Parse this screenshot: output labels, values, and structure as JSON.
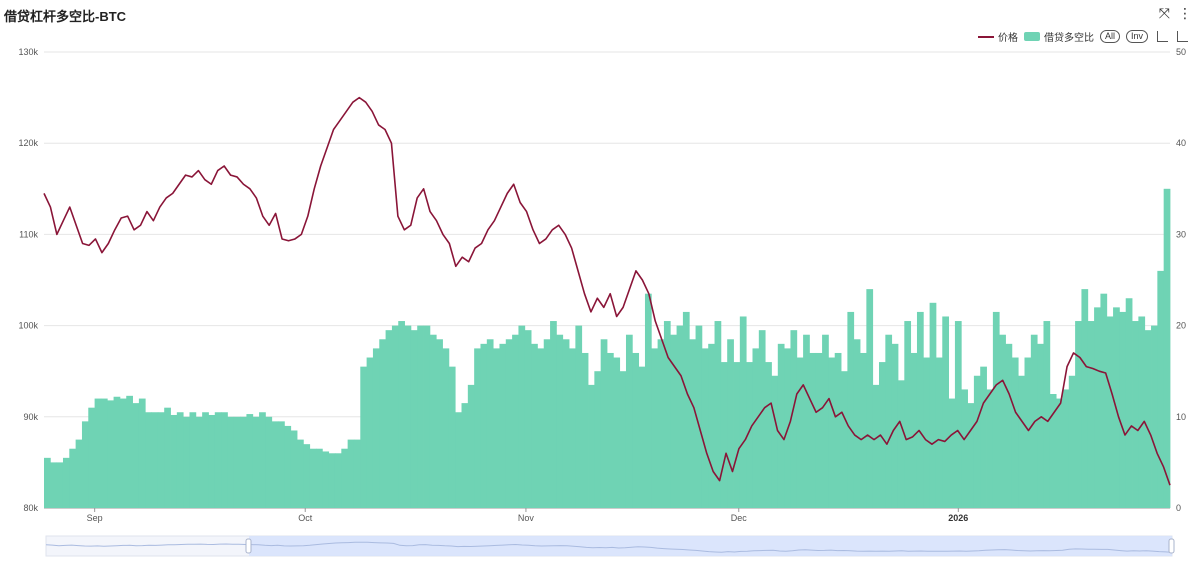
{
  "title": "借贷杠杆多空比-BTC",
  "icons": {
    "expand": "expand-icon",
    "more": "more-vertical-icon"
  },
  "legend": {
    "price": "价格",
    "ratio": "借贷多空比",
    "all": "All",
    "inv": "Inv"
  },
  "colors": {
    "price": "#8a1538",
    "ratio": "#6fd3b4",
    "zoom_fill": "#d6e2fb"
  },
  "chart_data": {
    "type": "bar+line",
    "x_ticks": [
      "Sep",
      "Oct",
      "Nov",
      "Dec",
      "2026"
    ],
    "x_tick_bold": "2026",
    "y_left": {
      "min": 80000,
      "max": 130000,
      "ticks": [
        "80k",
        "90k",
        "100k",
        "110k",
        "120k",
        "130k"
      ]
    },
    "y_right": {
      "min": 0,
      "max": 50,
      "ticks": [
        "0",
        "10",
        "20",
        "30",
        "40",
        "50"
      ]
    },
    "series": [
      {
        "name": "价格",
        "type": "line",
        "axis": "left",
        "values": [
          114500,
          113000,
          110000,
          111500,
          113000,
          111000,
          109000,
          108800,
          109500,
          108000,
          109000,
          110500,
          111800,
          112000,
          110500,
          111000,
          112500,
          111500,
          113000,
          114000,
          114500,
          115500,
          116500,
          116300,
          117000,
          116000,
          115500,
          117000,
          117500,
          116500,
          116300,
          115500,
          115000,
          114000,
          112000,
          111000,
          112300,
          109500,
          109300,
          109500,
          110000,
          112000,
          115000,
          117500,
          119500,
          121500,
          122500,
          123500,
          124500,
          125000,
          124500,
          123500,
          122000,
          121500,
          120000,
          112000,
          110500,
          111000,
          114000,
          115000,
          112500,
          111500,
          110000,
          109000,
          106500,
          107500,
          107000,
          108500,
          109000,
          110500,
          111500,
          113000,
          114500,
          115500,
          113500,
          112500,
          110500,
          109000,
          109500,
          110500,
          111000,
          110000,
          108500,
          106000,
          103500,
          101500,
          103000,
          102000,
          103500,
          101000,
          102000,
          104000,
          106000,
          105000,
          103500,
          100500,
          98500,
          96500,
          95500,
          94500,
          92500,
          91000,
          88500,
          86000,
          84000,
          83000,
          86000,
          84000,
          86500,
          87500,
          89000,
          90000,
          91000,
          91500,
          88500,
          87500,
          89500,
          92500,
          93500,
          92000,
          90500,
          91000,
          92000,
          90000,
          90500,
          89000,
          88000,
          87500,
          88000,
          87500,
          88000,
          87000,
          88500,
          89500,
          87500,
          87800,
          88500,
          87500,
          87000,
          87500,
          87300,
          88000,
          88500,
          87500,
          88500,
          89500,
          91500,
          92500,
          93500,
          94000,
          92500,
          90500,
          89500,
          88500,
          89500,
          90000,
          89500,
          90500,
          91500,
          95500,
          97000,
          96500,
          95500,
          95300,
          95000,
          94800,
          92500,
          90000,
          88000,
          89000,
          88500,
          89500,
          88000,
          86000,
          84500,
          82500
        ]
      },
      {
        "name": "借贷多空比",
        "type": "bar",
        "axis": "right",
        "values": [
          5.5,
          5.0,
          5.0,
          5.5,
          6.5,
          7.5,
          9.5,
          11.0,
          12.0,
          12.0,
          11.8,
          12.2,
          12.0,
          12.3,
          11.5,
          12.0,
          10.5,
          10.5,
          10.5,
          11.0,
          10.2,
          10.5,
          10.0,
          10.5,
          10.0,
          10.5,
          10.2,
          10.5,
          10.5,
          10.0,
          10.0,
          10.0,
          10.3,
          10.0,
          10.5,
          10.0,
          9.5,
          9.5,
          9.0,
          8.5,
          7.5,
          7.0,
          6.5,
          6.5,
          6.2,
          6.0,
          6.0,
          6.5,
          7.5,
          7.5,
          15.5,
          16.5,
          17.5,
          18.5,
          19.5,
          20.0,
          20.5,
          20.0,
          19.5,
          20.0,
          20.0,
          19.0,
          18.5,
          17.5,
          15.5,
          10.5,
          11.5,
          13.5,
          17.5,
          18.0,
          18.5,
          17.5,
          18.0,
          18.5,
          19.0,
          20.0,
          19.5,
          18.0,
          17.5,
          18.5,
          20.5,
          19.0,
          18.5,
          17.5,
          20.0,
          17.0,
          13.5,
          15.0,
          18.5,
          17.0,
          16.5,
          15.0,
          19.0,
          17.0,
          15.5,
          23.5,
          17.5,
          18.5,
          20.5,
          19.0,
          20.0,
          21.5,
          18.5,
          20.0,
          17.5,
          18.0,
          20.5,
          16.0,
          18.5,
          16.0,
          21.0,
          16.0,
          17.5,
          19.5,
          16.0,
          14.5,
          18.0,
          17.5,
          19.5,
          16.5,
          19.0,
          17.0,
          17.0,
          19.0,
          16.5,
          17.0,
          15.0,
          21.5,
          18.5,
          17.0,
          24.0,
          13.5,
          16.0,
          19.0,
          18.0,
          14.0,
          20.5,
          17.0,
          21.5,
          16.5,
          22.5,
          16.5,
          21.0,
          12.0,
          20.5,
          13.0,
          11.5,
          14.5,
          15.5,
          13.0,
          21.5,
          19.0,
          18.0,
          16.5,
          14.5,
          16.5,
          19.0,
          18.0,
          20.5,
          12.5,
          12.0,
          13.0,
          14.5,
          20.5,
          24.0,
          20.5,
          22.0,
          23.5,
          21.0,
          22.0,
          21.5,
          23.0,
          20.5,
          21.0,
          19.5,
          20.0,
          26.0,
          35.0
        ]
      }
    ]
  }
}
